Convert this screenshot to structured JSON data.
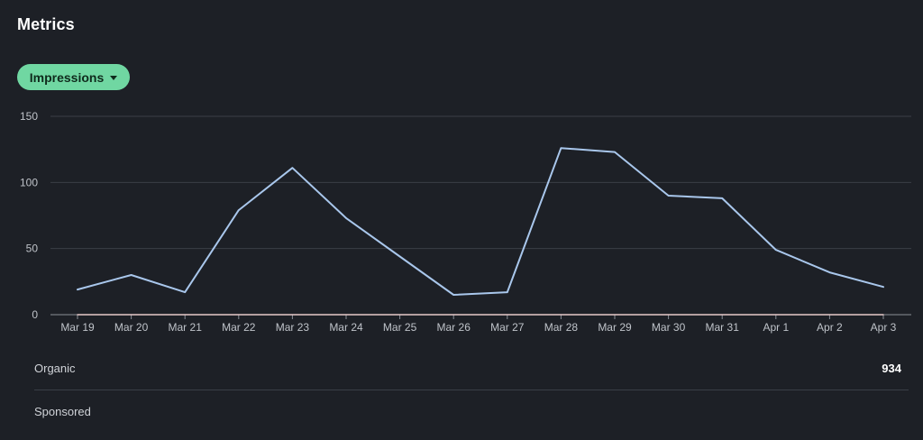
{
  "header": {
    "title": "Metrics"
  },
  "metric_selector": {
    "label": "Impressions",
    "icon": "caret-down-icon"
  },
  "breakdown": [
    {
      "label": "Organic",
      "value": "934"
    },
    {
      "label": "Sponsored",
      "value": ""
    }
  ],
  "colors": {
    "background": "#1d2026",
    "accent": "#70d7a2",
    "line": "#a9c7ec",
    "baseline": "#e7c9c9",
    "grid": "#3a3e46"
  },
  "chart_data": {
    "type": "line",
    "title": "",
    "xlabel": "",
    "ylabel": "",
    "ylim": [
      0,
      150
    ],
    "yticks": [
      0,
      50,
      100,
      150
    ],
    "grid": true,
    "categories": [
      "Mar 19",
      "Mar 20",
      "Mar 21",
      "Mar 22",
      "Mar 23",
      "Mar 24",
      "Mar 25",
      "Mar 26",
      "Mar 27",
      "Mar 28",
      "Mar 29",
      "Mar 30",
      "Mar 31",
      "Apr 1",
      "Apr 2",
      "Apr 3"
    ],
    "series": [
      {
        "values": [
          19,
          30,
          17,
          79,
          111,
          73,
          44,
          15,
          17,
          126,
          123,
          90,
          88,
          49,
          32,
          21
        ],
        "color": "#a9c7ec"
      },
      {
        "values": [
          0,
          0,
          0,
          0,
          0,
          0,
          0,
          0,
          0,
          0,
          0,
          0,
          0,
          0,
          0,
          0
        ],
        "color": "#e7c9c9"
      }
    ]
  }
}
